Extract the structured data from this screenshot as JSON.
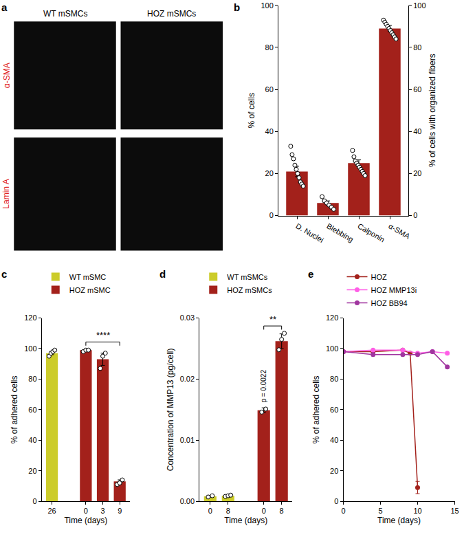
{
  "images": {
    "label": "a",
    "columns": [
      "WT mSMCs",
      "HOZ mSMCs"
    ],
    "rows": [
      "α-SMA",
      "Lamin A"
    ]
  },
  "chart_data": [
    {
      "label": "b",
      "type": "bar",
      "categories": [
        "D. Nuclei",
        "Blebbing",
        "Calponin",
        "α-SMA"
      ],
      "y_label": "% of cells",
      "y2_label": "% of cells with organized fibers",
      "ylim": [
        0,
        100
      ],
      "yticks": [
        0,
        20,
        40,
        60,
        80,
        100
      ],
      "y2lim": [
        0,
        100
      ],
      "y2ticks": [
        0,
        20,
        40,
        60,
        80,
        100
      ],
      "series": [
        {
          "color": "#a3211b",
          "values": [
            21,
            6,
            null,
            null
          ],
          "errors": [
            2.5,
            1,
            null,
            null
          ],
          "points": [
            [
              33,
              29,
              27,
              24,
              22,
              20,
              18,
              16,
              15,
              14
            ],
            [
              9,
              7,
              6,
              5,
              4,
              3
            ],
            [],
            []
          ]
        },
        {
          "color": "#a3211b",
          "axis": "y2",
          "values": [
            null,
            null,
            25,
            89
          ],
          "errors": [
            null,
            null,
            1.5,
            1.5
          ],
          "points": [
            [],
            [],
            [
              31,
              28,
              26,
              25,
              24,
              23,
              22,
              21,
              20,
              19
            ],
            [
              93,
              92,
              91,
              90,
              89,
              88,
              87,
              86,
              85,
              84
            ]
          ]
        }
      ]
    },
    {
      "label": "c",
      "type": "bar",
      "categories": [
        "26",
        null,
        "0",
        "3",
        "9"
      ],
      "x_label": "Time (days)",
      "y_label": "% of adhered cells",
      "ylim": [
        0,
        120
      ],
      "yticks": [
        0,
        20,
        40,
        60,
        80,
        100,
        120
      ],
      "legend": "above",
      "series": [
        {
          "name": "WT mSMC",
          "color": "#cccc2a",
          "values": [
            97,
            null,
            null,
            null,
            null
          ],
          "errors": [
            1,
            null,
            null,
            null,
            null
          ],
          "points": [
            [
              95,
              97,
              98,
              99
            ],
            [],
            [],
            [],
            []
          ]
        },
        {
          "name": "HOZ mSMC",
          "color": "#a3211b",
          "values": [
            null,
            null,
            99,
            93,
            13
          ],
          "errors": [
            null,
            null,
            0.5,
            4,
            1
          ],
          "points": [
            [],
            [],
            [
              98,
              99,
              99
            ],
            [
              87,
              95,
              97
            ],
            [
              11,
              12,
              14
            ]
          ]
        }
      ],
      "annotations": [
        {
          "text": "****",
          "between": [
            2,
            4
          ]
        }
      ]
    },
    {
      "label": "d",
      "type": "bar",
      "categories": [
        "0",
        "8",
        null,
        "0",
        "8"
      ],
      "x_label": "Time (days)",
      "y_label": "Concentration of MMP13 (pg/cell)",
      "ylim": [
        0,
        0.03
      ],
      "yticks": [
        {
          "value": 0,
          "label": "0.00"
        },
        0.01,
        0.02,
        0.03
      ],
      "legend": "above",
      "series": [
        {
          "name": "WT mSMCs",
          "color": "#cccc2a",
          "values": [
            0.0008,
            0.0009,
            null,
            null,
            null
          ],
          "errors": [
            0.0001,
            0.0001,
            null,
            null,
            null
          ],
          "points": [
            [
              0.0007,
              0.0009
            ],
            [
              0.0008,
              0.0009,
              0.001
            ],
            [],
            [],
            []
          ]
        },
        {
          "name": "HOZ mSMCs",
          "color": "#a3211b",
          "values": [
            null,
            null,
            null,
            0.0149,
            0.0262
          ],
          "errors": [
            null,
            null,
            null,
            0.0004,
            0.0012
          ],
          "points": [
            [],
            [],
            [],
            [
              0.0146,
              0.0151
            ],
            [
              0.0248,
              0.0265,
              0.0275
            ]
          ]
        }
      ],
      "annotations": [
        {
          "text": "**",
          "between": [
            3,
            4
          ]
        },
        {
          "text": "p = 0.0022",
          "at": 3
        }
      ]
    },
    {
      "label": "e",
      "type": "line",
      "x_label": "Time (days)",
      "y_label": "% of adhered cells",
      "xlim": [
        0,
        15
      ],
      "xticks": [
        0,
        5,
        10,
        15
      ],
      "ylim": [
        0,
        120
      ],
      "yticks": [
        0,
        20,
        40,
        60,
        80,
        100,
        120
      ],
      "legend": "above",
      "series": [
        {
          "name": "HOZ",
          "color": "#a3211b",
          "marker": "circle",
          "x": [
            0,
            4,
            8,
            9,
            10
          ],
          "values": [
            98,
            98,
            99,
            97,
            9
          ],
          "errors": [
            null,
            null,
            null,
            null,
            4
          ]
        },
        {
          "name": "HOZ MMP13i",
          "color": "#ff5ee6",
          "marker": "circle",
          "x": [
            0,
            4,
            8,
            10,
            12,
            14
          ],
          "values": [
            98,
            99,
            99,
            97,
            98,
            97
          ]
        },
        {
          "name": "HOZ BB94",
          "color": "#a0359f",
          "marker": "circle",
          "x": [
            0,
            4,
            8,
            10,
            12,
            14
          ],
          "values": [
            98,
            96,
            96,
            96,
            98,
            88
          ]
        }
      ]
    }
  ]
}
